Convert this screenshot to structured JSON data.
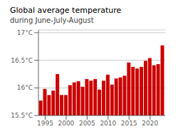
{
  "chart_data": {
    "type": "bar",
    "title": "Global average temperature",
    "subtitle": "during June-July-August",
    "x": [
      1994,
      1995,
      1996,
      1997,
      1998,
      1999,
      2000,
      2001,
      2002,
      2003,
      2004,
      2005,
      2006,
      2007,
      2008,
      2009,
      2010,
      2011,
      2012,
      2013,
      2014,
      2015,
      2016,
      2017,
      2018,
      2019,
      2020,
      2021,
      2022,
      2023
    ],
    "values": [
      15.77,
      15.98,
      15.87,
      15.95,
      16.25,
      15.87,
      15.87,
      16.05,
      16.1,
      16.12,
      16.02,
      16.16,
      16.13,
      16.16,
      15.97,
      16.13,
      16.24,
      16.06,
      16.17,
      16.19,
      16.22,
      16.46,
      16.38,
      16.35,
      16.38,
      16.49,
      16.54,
      16.41,
      16.43,
      16.77
    ],
    "color": "#cc0000",
    "xlim": [
      1993.4,
      2023.6
    ],
    "xticks": [
      1995,
      2000,
      2005,
      2010,
      2015,
      2020
    ],
    "ylim": [
      15.5,
      17.05
    ],
    "yticks": [
      {
        "value": 15.5,
        "label": "15.5°C"
      },
      {
        "value": 16.0,
        "label": "16°C"
      },
      {
        "value": 16.5,
        "label": "16.5°C"
      },
      {
        "value": 17.0,
        "label": "17°C"
      }
    ],
    "grid": true
  }
}
